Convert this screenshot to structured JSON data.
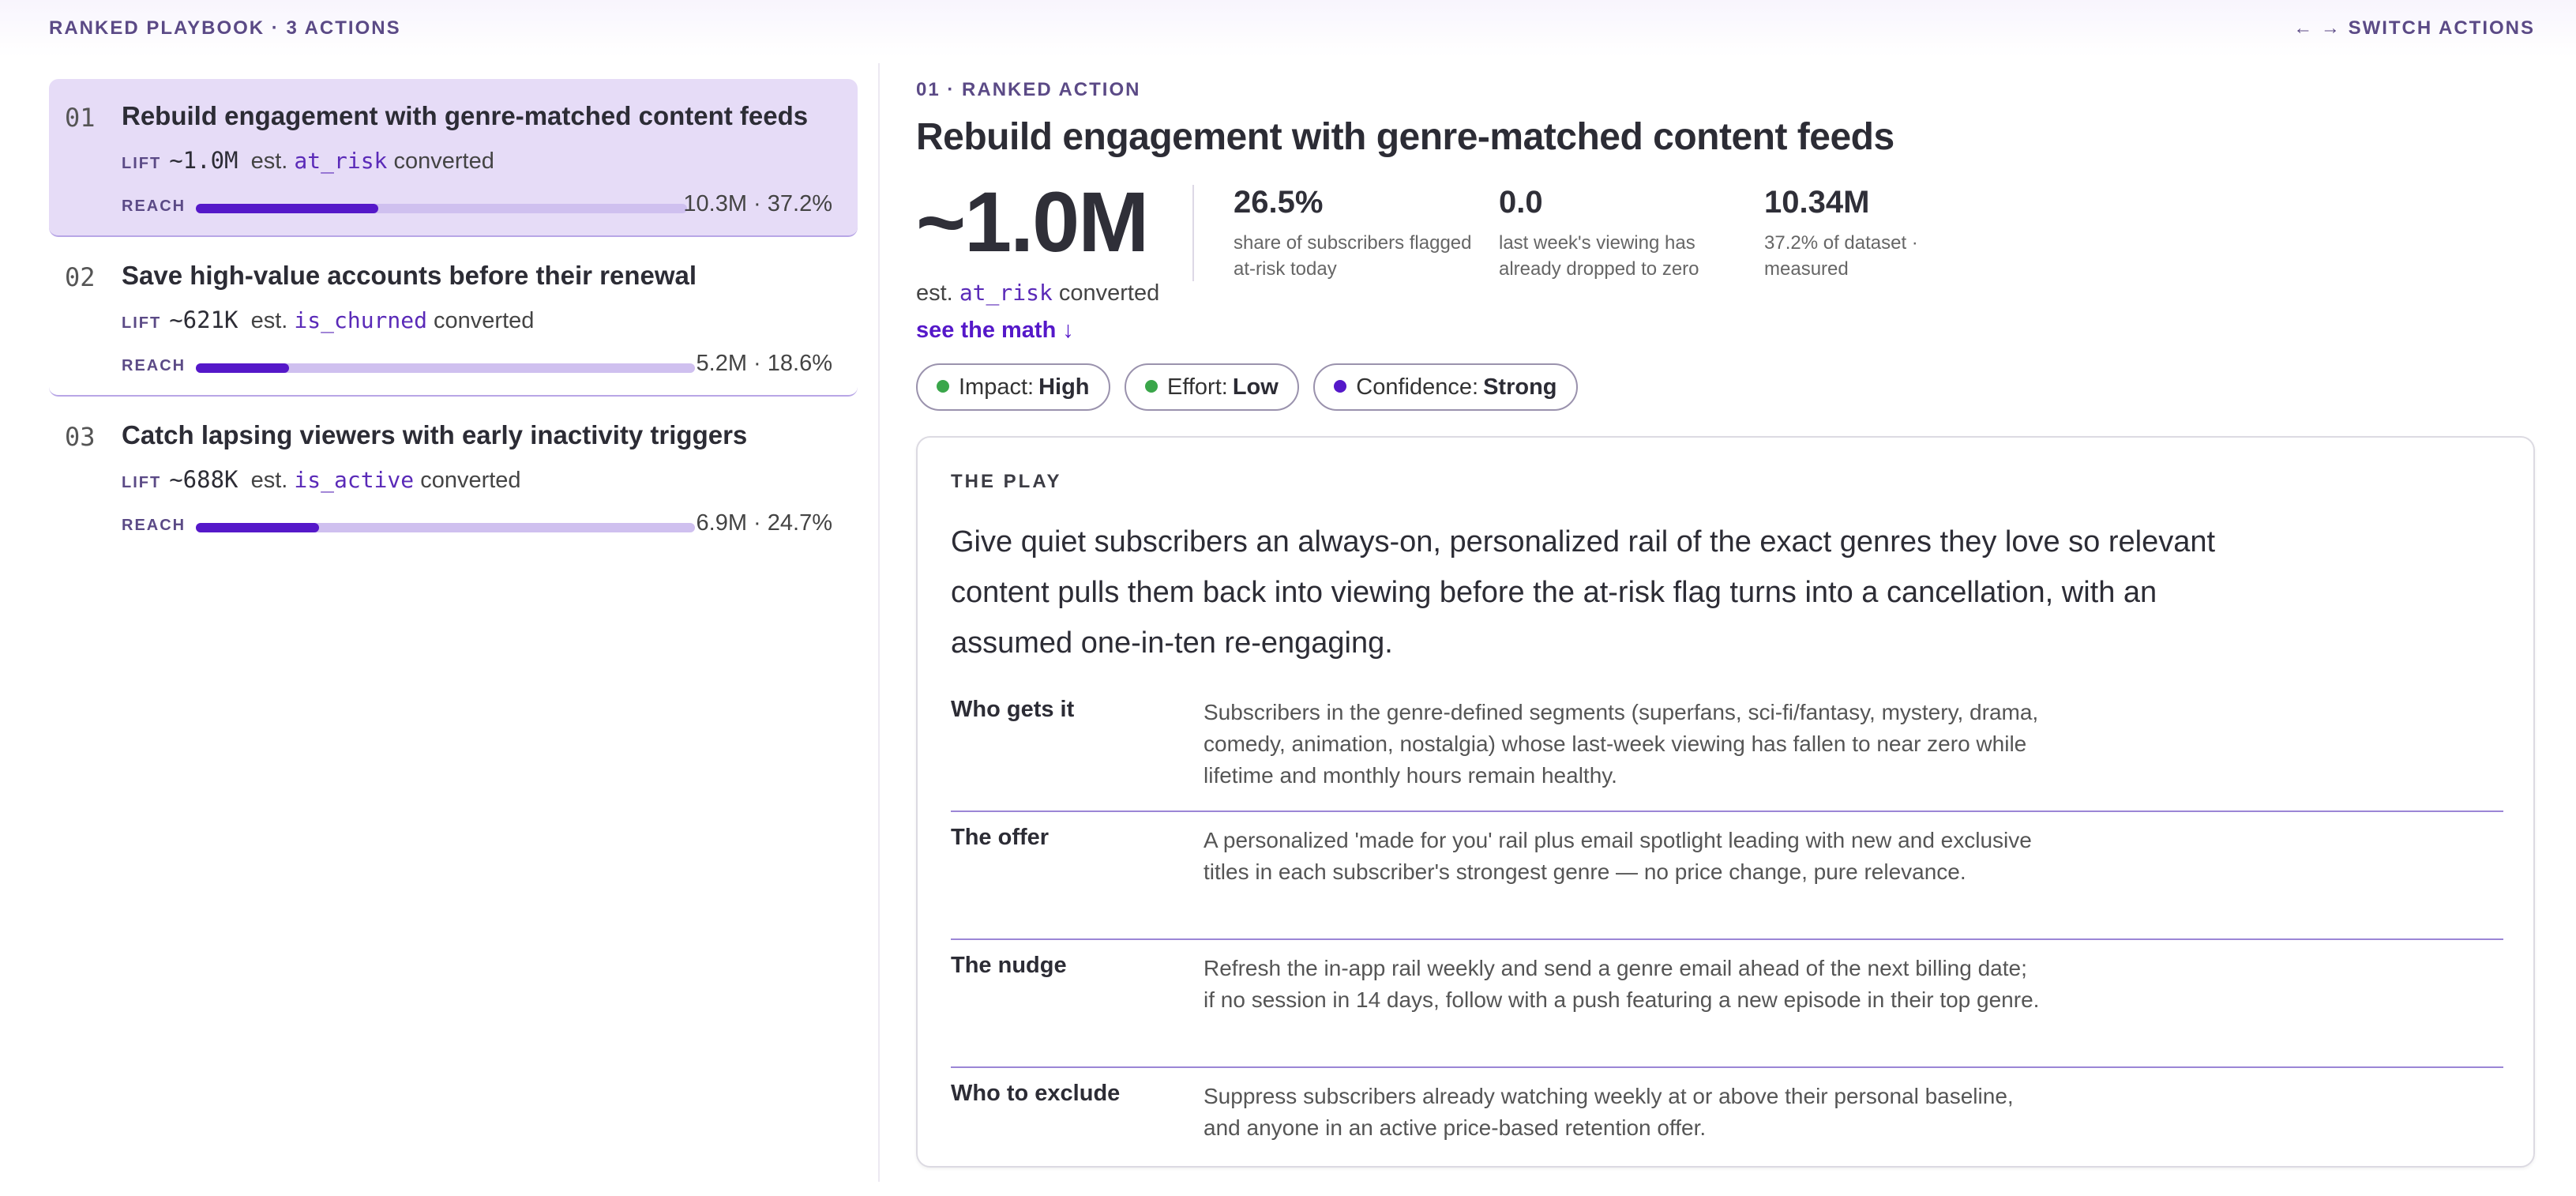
{
  "header": {
    "left": "RANKED PLAYBOOK · 3 ACTIONS",
    "right": "← → SWITCH ACTIONS"
  },
  "actions": [
    {
      "num": "01",
      "title": "Rebuild engagement with genre-matched content feeds",
      "lift_tag": "LIFT",
      "lift": "~1.0M",
      "est": "est.",
      "field": "at_risk",
      "converted": "converted",
      "reach_tag": "REACH",
      "reach_value": "10.3M · 37.2%",
      "reach_fraction": 0.372,
      "active": true
    },
    {
      "num": "02",
      "title": "Save high-value accounts before their renewal",
      "lift_tag": "LIFT",
      "lift": "~621K",
      "est": "est.",
      "field": "is_churned",
      "converted": "converted",
      "reach_tag": "REACH",
      "reach_value": "5.2M · 18.6%",
      "reach_fraction": 0.186,
      "active": false
    },
    {
      "num": "03",
      "title": "Catch lapsing viewers with early inactivity triggers",
      "lift_tag": "LIFT",
      "lift": "~688K",
      "est": "est.",
      "field": "is_active",
      "converted": "converted",
      "reach_tag": "REACH",
      "reach_value": "6.9M · 24.7%",
      "reach_fraction": 0.247,
      "active": false
    }
  ],
  "detail": {
    "kicker": "01 · RANKED ACTION",
    "title": "Rebuild engagement with genre-matched content feeds",
    "big_value": "~1.0M",
    "est": "est.",
    "field": "at_risk",
    "converted": "converted",
    "see_math": "see the math ↓",
    "stats": [
      {
        "value": "26.5%",
        "desc": "share of subscribers flagged at-risk today"
      },
      {
        "value": "0.0",
        "desc": "last week's viewing has already dropped to zero"
      },
      {
        "value": "10.34M",
        "desc": "37.2% of dataset · measured"
      }
    ],
    "pills": [
      {
        "label": "Impact:",
        "value": "High",
        "color": "#3aa64a"
      },
      {
        "label": "Effort:",
        "value": "Low",
        "color": "#3aa64a"
      },
      {
        "label": "Confidence:",
        "value": "Strong",
        "color": "#5518c9"
      }
    ],
    "play": {
      "label": "THE PLAY",
      "lead": "Give quiet subscribers an always-on, personalized rail of the exact genres they love so relevant content pulls them back into viewing before the at-risk flag turns into a cancellation, with an assumed one-in-ten re-engaging.",
      "rows": [
        {
          "key": "Who gets it",
          "value": "Subscribers in the genre-defined segments (superfans, sci-fi/fantasy, mystery, drama, comedy, animation, nostalgia) whose last-week viewing has fallen to near zero while lifetime and monthly hours remain healthy."
        },
        {
          "key": "The offer",
          "value": "A personalized 'made for you' rail plus email spotlight leading with new and exclusive titles in each subscriber's strongest genre — no price change, pure relevance."
        },
        {
          "key": "The nudge",
          "value": "Refresh the in-app rail weekly and send a genre email ahead of the next billing date; if no session in 14 days, follow with a push featuring a new episode in their top genre."
        },
        {
          "key": "Who to exclude",
          "value": "Suppress subscribers already watching weekly at or above their personal baseline, and anyone in an active price-based retention offer."
        }
      ]
    }
  }
}
